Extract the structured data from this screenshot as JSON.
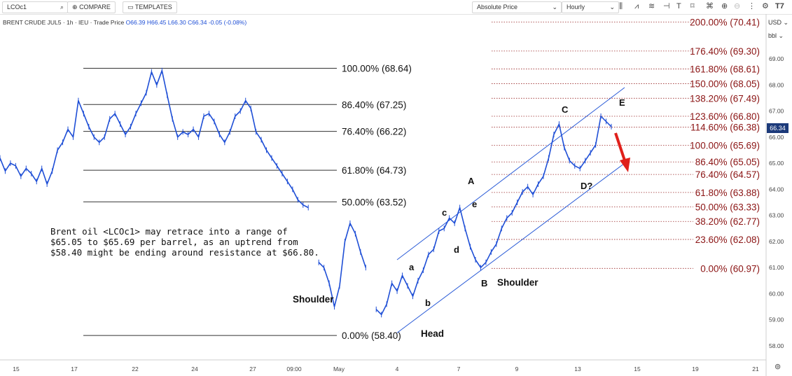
{
  "toolbar": {
    "symbol": "LCOc1",
    "compare_label": "COMPARE",
    "templates_label": "TEMPLATES",
    "price_mode": "Absolute Price",
    "interval": "Hourly"
  },
  "quote": {
    "name": "BRENT CRUDE JUL5",
    "interval": "1h",
    "exchange": "IEU",
    "type": "Trade Price",
    "open": "O66.39",
    "high": "H66.45",
    "low": "L66.30",
    "close": "C66.34",
    "change": "-0.05 (-0.08%)"
  },
  "axis": {
    "currency": "USD",
    "unit": "bbl",
    "last_price": "66.34"
  },
  "note": "Brent oil <LCOc1> may retrace into a range of $65.05 to $65.69 per barrel, as an uptrend from $58.40 might be ending around resistance at $66.80.",
  "annotations": {
    "left_shoulder": "Shoulder",
    "head": "Head",
    "right_shoulder": "Shoulder",
    "waves": [
      "A",
      "B",
      "C",
      "D?",
      "E",
      "a",
      "b",
      "c",
      "d",
      "e"
    ]
  },
  "colors": {
    "price": "#1f4fd6",
    "channel": "#2a5bd7",
    "retracement_text": "#111111",
    "projection_text": "#8b1414",
    "arrow": "#e0201b"
  },
  "chart_data": {
    "type": "line",
    "title": "",
    "xlabel": "",
    "ylabel": "",
    "ylim": [
      57.75,
      70.5
    ],
    "y_ticks": [
      58.0,
      59.0,
      60.0,
      61.0,
      62.0,
      63.0,
      64.0,
      65.0,
      66.0,
      67.0,
      68.0,
      69.0
    ],
    "x_tick_labels": [
      "15",
      "17",
      "22",
      "24",
      "27",
      "09:00",
      "May",
      "4",
      "7",
      "9",
      "13",
      "15",
      "19",
      "21"
    ],
    "series": [
      {
        "values": [
          65.2,
          64.7,
          65.0,
          64.9,
          64.5,
          64.8,
          64.6,
          64.3,
          64.8,
          64.2,
          64.7,
          65.5,
          65.8,
          66.3,
          66.0,
          67.4,
          66.9,
          66.4,
          66.0,
          65.8,
          66.0,
          66.7,
          66.9,
          66.5,
          66.1,
          66.4,
          66.9,
          67.3,
          67.7,
          68.5,
          68.0,
          68.55,
          67.6,
          66.7,
          66.0,
          66.2,
          66.1,
          66.3,
          66.0,
          66.8,
          66.9,
          66.6,
          66.1,
          65.8,
          66.2,
          66.8,
          67.0,
          67.4,
          67.1,
          66.2,
          65.9,
          65.5,
          65.2,
          64.9,
          64.6,
          64.3,
          64.0,
          63.6,
          63.4,
          63.3,
          null,
          61.2,
          61.0,
          60.4,
          59.5,
          60.3,
          62.0,
          62.7,
          62.3,
          61.6,
          61.0,
          null,
          59.4,
          59.2,
          59.6,
          60.4,
          60.1,
          60.7,
          60.3,
          59.9,
          60.5,
          60.9,
          61.5,
          61.7,
          62.4,
          62.5,
          62.9,
          62.7,
          63.3,
          62.5,
          61.8,
          61.3,
          61.0,
          61.2,
          61.6,
          61.9,
          62.5,
          62.9,
          63.1,
          63.5,
          63.9,
          64.1,
          63.8,
          64.2,
          64.5,
          65.2,
          66.1,
          66.5,
          65.6,
          65.1,
          64.9,
          64.8,
          65.1,
          65.4,
          65.7,
          66.8,
          66.6,
          66.4
        ]
      }
    ],
    "channel": {
      "upper": [
        [
          58.6,
          61.3
        ],
        [
          69.2,
          67.9
        ]
      ],
      "lower": [
        [
          58.6,
          58.5
        ],
        [
          69.2,
          65.0
        ]
      ]
    },
    "fib_retracement": [
      {
        "label": "100.00% (68.64)",
        "value": 68.64
      },
      {
        "label": "86.40% (67.25)",
        "value": 67.25
      },
      {
        "label": "76.40% (66.22)",
        "value": 66.22
      },
      {
        "label": "61.80% (64.73)",
        "value": 64.73
      },
      {
        "label": "50.00% (63.52)",
        "value": 63.52
      },
      {
        "label": "0.00% (58.40)",
        "value": 58.4
      }
    ],
    "fib_projection": [
      {
        "label": "200.00% (70.41)",
        "value": 70.41
      },
      {
        "label": "176.40% (69.30)",
        "value": 69.3
      },
      {
        "label": "161.80% (68.61)",
        "value": 68.61
      },
      {
        "label": "150.00% (68.05)",
        "value": 68.05
      },
      {
        "label": "138.20% (67.49)",
        "value": 67.49
      },
      {
        "label": "123.60% (66.80)",
        "value": 66.8
      },
      {
        "label": "114.60% (66.38)",
        "value": 66.38
      },
      {
        "label": "100.00% (65.69)",
        "value": 65.69
      },
      {
        "label": "86.40% (65.05)",
        "value": 65.05
      },
      {
        "label": "76.40% (64.57)",
        "value": 64.57
      },
      {
        "label": "61.80% (63.88)",
        "value": 63.88
      },
      {
        "label": "50.00% (63.33)",
        "value": 63.33
      },
      {
        "label": "38.20% (62.77)",
        "value": 62.77
      },
      {
        "label": "23.60% (62.08)",
        "value": 62.08
      },
      {
        "label": "0.00% (60.97)",
        "value": 60.97
      }
    ]
  }
}
